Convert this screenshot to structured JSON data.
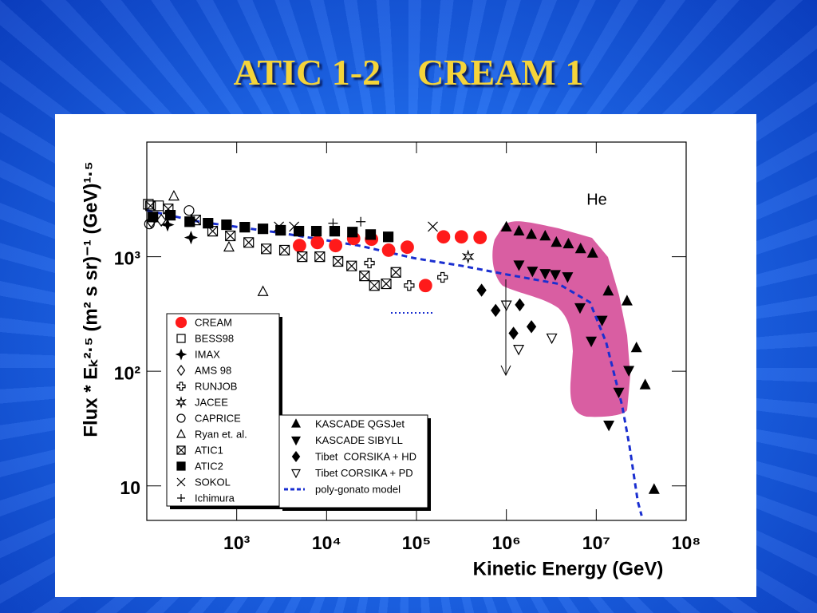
{
  "chart_data": {
    "type": "scatter",
    "title": "ATIC 1-2    CREAM 1",
    "annotation": "He",
    "xlabel": "Kinetic Energy (GeV)",
    "ylabel": "Flux * Eₖ²·⁵ (m² s sr)⁻¹ (GeV)¹·⁵",
    "xscale": "log",
    "yscale": "log",
    "xlim": [
      100,
      100000000
    ],
    "ylim": [
      5,
      10000
    ],
    "xticks": [
      {
        "value": 1000,
        "label": "10³"
      },
      {
        "value": 10000,
        "label": "10⁴"
      },
      {
        "value": 100000,
        "label": "10⁵"
      },
      {
        "value": 1000000,
        "label": "10⁶"
      },
      {
        "value": 10000000,
        "label": "10⁷"
      },
      {
        "value": 100000000,
        "label": "10⁸"
      }
    ],
    "yticks": [
      10,
      {
        "value": 100,
        "label": "10²"
      },
      {
        "value": 1000,
        "label": "10³"
      }
    ],
    "legend_groups": [
      {
        "series": [
          {
            "name": "CREAM",
            "marker": "circle",
            "color": "#ff1a1a",
            "x": [
              5000,
              7900,
              12600,
              20000,
              31600,
              49000,
              79000,
              126000,
              200000,
              316000,
              510000
            ],
            "values": [
              1250,
              1330,
              1250,
              1440,
              1420,
              1140,
              1210,
              560,
              1490,
              1490,
              1470
            ]
          },
          {
            "name": "BESS98",
            "marker": "square-open",
            "color": "#000000",
            "x": [
              104,
              135
            ],
            "values": [
              2870,
              2780
            ]
          },
          {
            "name": "IMAX",
            "marker": "star",
            "color": "#000000",
            "x": [
              170,
              310
            ],
            "values": [
              1900,
              1470
            ]
          },
          {
            "name": "AMS 98",
            "marker": "diamond-open",
            "color": "#000000",
            "x": [
              112,
              145
            ],
            "values": [
              2020,
              2080
            ]
          },
          {
            "name": "RUNJOB",
            "marker": "cross-open",
            "color": "#000000",
            "x": [
              30000,
              83000,
              195000
            ],
            "values": [
              880,
              560,
              660
            ]
          },
          {
            "name": "JACEE",
            "marker": "star-open",
            "color": "#000000",
            "x": [
              375000
            ],
            "values": [
              1000
            ]
          },
          {
            "name": "CAPRICE",
            "marker": "circle-open",
            "color": "#000000",
            "x": [
              107,
              295
            ],
            "values": [
              1930,
              2530
            ]
          },
          {
            "name": "Ryan et. al.",
            "marker": "triangle-open",
            "color": "#000000",
            "x": [
              200,
              820,
              1960
            ],
            "values": [
              3370,
              1210,
              495
            ]
          },
          {
            "name": "ATIC1",
            "marker": "boxed-x",
            "color": "#000000",
            "x": [
              110,
              173,
              350,
              540,
              850,
              1360,
              2130,
              3400,
              5350,
              8400,
              13400,
              19000,
              26400,
              34000,
              46000,
              59000
            ],
            "values": [
              2780,
              2610,
              2090,
              1670,
              1520,
              1330,
              1170,
              1140,
              1000,
              1000,
              910,
              830,
              680,
              560,
              580,
              730
            ]
          },
          {
            "name": "ATIC2",
            "marker": "square",
            "color": "#000000",
            "x": [
              117,
              183,
              300,
              480,
              770,
              1230,
              1960,
              3080,
              4920,
              7700,
              12300,
              19400,
              30900,
              48500
            ],
            "values": [
              2220,
              2300,
              2020,
              1960,
              1900,
              1810,
              1750,
              1700,
              1670,
              1670,
              1670,
              1640,
              1560,
              1490
            ]
          },
          {
            "name": "SOKOL",
            "marker": "x",
            "color": "#000000",
            "x": [
              2950,
              4350,
              152000
            ],
            "values": [
              1830,
              1830,
              1830
            ]
          },
          {
            "name": "Ichimura",
            "marker": "plus",
            "color": "#000000",
            "x": [
              11800,
              24000
            ],
            "values": [
              1960,
              2020
            ]
          }
        ]
      },
      {
        "series": [
          {
            "name": "KASCADE QGSJet",
            "marker": "triangle",
            "color": "#000000",
            "x": [
              1000000,
              1380000,
              1900000,
              2700000,
              3600000,
              4900000,
              6700000,
              9100000,
              13600000,
              22000000,
              28000000,
              35000000,
              44000000
            ],
            "values": [
              1810,
              1670,
              1560,
              1510,
              1330,
              1290,
              1170,
              1070,
              500,
              410,
              160,
              76,
              9.3
            ]
          },
          {
            "name": "KASCADE SIBYLL",
            "marker": "triangle-down",
            "color": "#000000",
            "x": [
              1380000,
              1950000,
              2700000,
              3500000,
              4800000,
              6600000,
              8800000,
              11600000,
              17800000,
              23000000,
              13800000
            ],
            "values": [
              850,
              750,
              715,
              700,
              670,
              360,
              184,
              280,
              66,
              102,
              34
            ]
          },
          {
            "name": "Tibet  CORSIKA + HD",
            "marker": "diamond",
            "color": "#000000",
            "x": [
              530000,
              760000,
              1200000,
              1410000,
              1900000
            ],
            "values": [
              510,
              340,
              215,
              380,
              245
            ]
          },
          {
            "name": "Tibet CORSIKA + PD",
            "marker": "triangle-down-open",
            "color": "#000000",
            "x": [
              1000000,
              1370000,
              3200000
            ],
            "values": [
              380,
              156,
              196
            ]
          },
          {
            "name": "poly-gonato model",
            "marker": "dashed-line",
            "color": "#1a2fd0",
            "x": [
              101,
              380,
              2950,
              22900,
              95000,
              325000,
              1000000,
              3800000,
              8500000,
              12900000,
              19400000,
              23500000,
              29000000,
              32000000
            ],
            "values": [
              2530,
              2020,
              1620,
              1250,
              970,
              830,
              700,
              580,
              400,
              178,
              50,
              22,
              7.3,
              5.5
            ]
          }
        ]
      }
    ]
  }
}
